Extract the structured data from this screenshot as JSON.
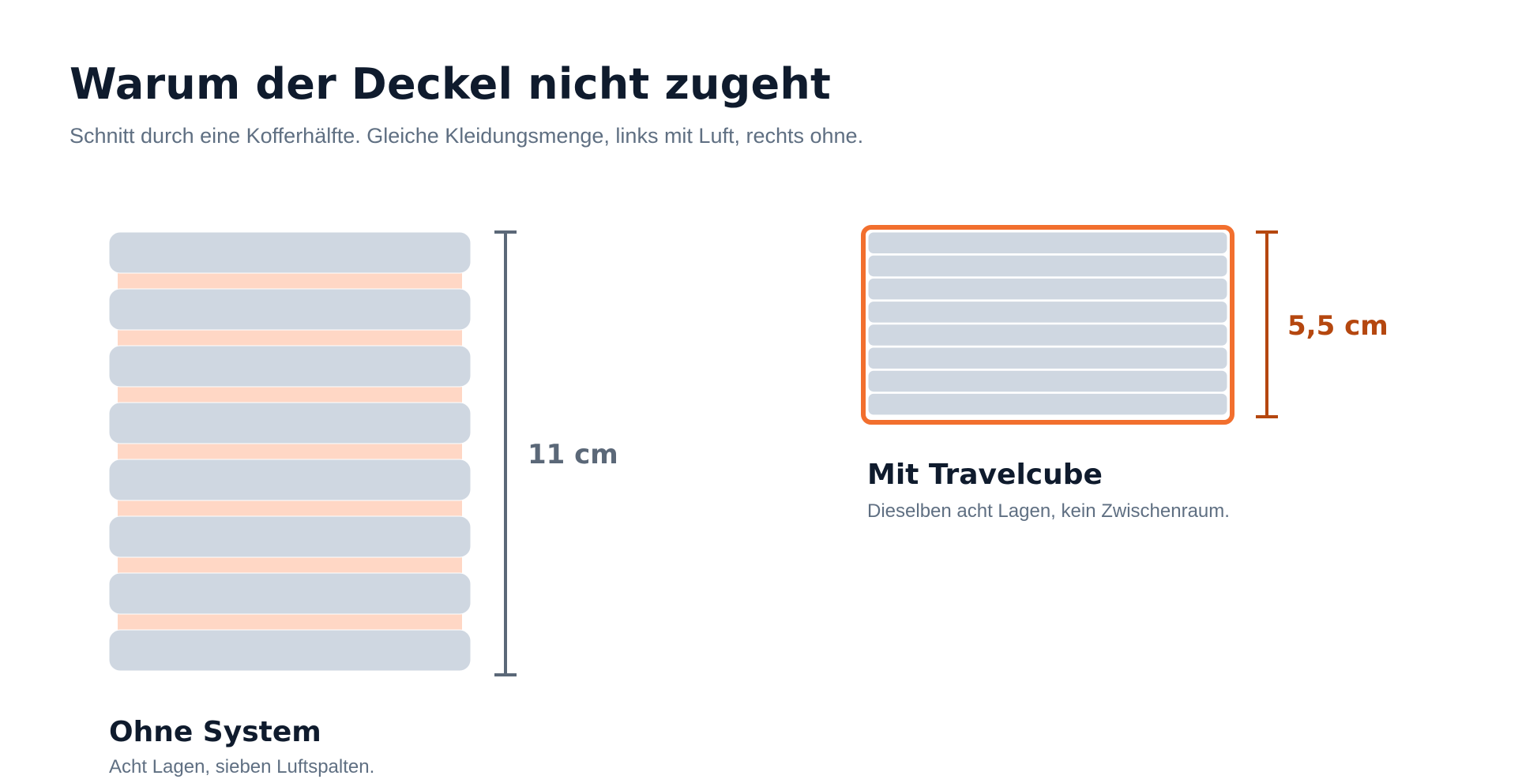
{
  "header": {
    "title": "Warum der Deckel nicht zugeht",
    "subtitle": "Schnitt durch eine Kofferhälfte. Gleiche Kleidungsmenge, links mit Luft, rechts ohne."
  },
  "colors": {
    "layer_fill": "#cfd7e1",
    "air_gap_fill": "#ffd7c5",
    "left_measure": "#5b6878",
    "cube_border": "#f26f2e",
    "right_measure": "#b5470f"
  },
  "panels": {
    "without_system": {
      "title": "Ohne System",
      "subtitle": "Acht Lagen, sieben Luftspalten.",
      "layer_count": 8,
      "air_gap_count": 7,
      "height_label": "11 cm"
    },
    "with_travelcube": {
      "title": "Mit Travelcube",
      "subtitle": "Dieselben acht Lagen, kein Zwischenraum.",
      "layer_count": 8,
      "air_gap_count": 0,
      "height_label": "5,5 cm"
    }
  }
}
